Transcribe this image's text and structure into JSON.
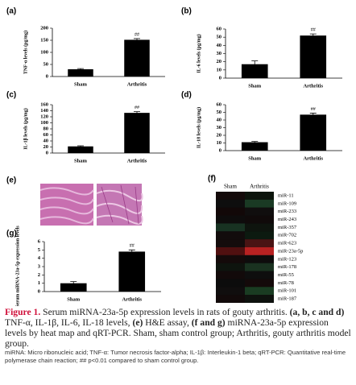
{
  "chart_data": [
    {
      "type": "bar",
      "panel": "(a)",
      "y_label": "TNF-α levels (pg/mg)",
      "categories": [
        "Sham",
        "Arthritis"
      ],
      "values": [
        30,
        152
      ],
      "errors": [
        3,
        5
      ],
      "value_annotations": [
        null,
        "##"
      ],
      "color": "#000000",
      "ylim": [
        0,
        200
      ],
      "yticks": [
        0,
        50,
        100,
        150,
        200
      ]
    },
    {
      "type": "bar",
      "panel": "(b)",
      "y_label": "IL-6 levels (pg/mg)",
      "categories": [
        "Sham",
        "Arthritis"
      ],
      "values": [
        17,
        52
      ],
      "errors": [
        4,
        2
      ],
      "value_annotations": [
        null,
        "##"
      ],
      "color": "#000000",
      "ylim": [
        0,
        60
      ],
      "yticks": [
        0,
        10,
        20,
        30,
        40,
        50,
        60
      ]
    },
    {
      "type": "bar",
      "panel": "(c)",
      "y_label": "IL-1β levels (pg/mg)",
      "categories": [
        "Sham",
        "Arthritis"
      ],
      "values": [
        22,
        133
      ],
      "errors": [
        2,
        4
      ],
      "value_annotations": [
        null,
        "##"
      ],
      "color": "#000000",
      "ylim": [
        0,
        160
      ],
      "yticks": [
        0,
        20,
        40,
        60,
        80,
        100,
        120,
        140,
        160
      ]
    },
    {
      "type": "bar",
      "panel": "(d)",
      "y_label": "IL-18 levels (pg/mg)",
      "categories": [
        "Sham",
        "Arthritis"
      ],
      "values": [
        11,
        47
      ],
      "errors": [
        1,
        2
      ],
      "value_annotations": [
        null,
        "##"
      ],
      "color": "#000000",
      "ylim": [
        0,
        60
      ],
      "yticks": [
        0,
        10,
        20,
        30,
        40,
        50,
        60
      ]
    },
    {
      "type": "bar",
      "panel": "(g)",
      "y_label": "Serum miRNA-23a-5p expression levels",
      "categories": [
        "Sham",
        "Arthritis"
      ],
      "values": [
        1,
        4.8
      ],
      "errors": [
        0.2,
        0.2
      ],
      "value_annotations": [
        null,
        "##"
      ],
      "color": "#000000",
      "ylim": [
        0,
        6
      ],
      "yticks": [
        0,
        1,
        2,
        3,
        4,
        5,
        6
      ]
    },
    {
      "type": "heatmap",
      "panel": "(f)",
      "columns": [
        "Sham",
        "Arthritis"
      ],
      "rows": [
        "miR-11",
        "miR-109",
        "miR-233",
        "miR-243",
        "miR-357",
        "miR-702",
        "miR-623",
        "miR-23a-5p",
        "miR-123",
        "miR-178",
        "miR-55",
        "miR-78",
        "miR-101",
        "miR-187"
      ],
      "cell_colors": [
        [
          "#140a0a",
          "#0c140c"
        ],
        [
          "#0e0e0e",
          "#1a3a24"
        ],
        [
          "#120808",
          "#100e0e"
        ],
        [
          "#0e0c0c",
          "#100a0a"
        ],
        [
          "#183222",
          "#0e140e"
        ],
        [
          "#120c0c",
          "#0c1a10"
        ],
        [
          "#140c0c",
          "#4a1414"
        ],
        [
          "#501010",
          "#b82222"
        ],
        [
          "#140a0a",
          "#0e0c0c"
        ],
        [
          "#0e140e",
          "#1a3220"
        ],
        [
          "#120a0a",
          "#0e0e0e"
        ],
        [
          "#0c0c0c",
          "#140a0a"
        ],
        [
          "#100e0e",
          "#1a3c22"
        ],
        [
          "#120a0a",
          "#0e120e"
        ]
      ]
    }
  ],
  "image_panel": {
    "label": "(e)"
  },
  "caption": {
    "label": "Figure 1.",
    "segments": [
      {
        "text": " Serum miRNA-23a-5p expression levels in rats of gouty arthritis. ",
        "bold": false
      },
      {
        "text": "(a, b, c and d)",
        "bold": true
      },
      {
        "text": " TNF-α, IL-1β, IL-6, IL-18 levels, ",
        "bold": false
      },
      {
        "text": "(e)",
        "bold": true
      },
      {
        "text": " H&E assay, ",
        "bold": false
      },
      {
        "text": "(f and g)",
        "bold": true
      },
      {
        "text": " miRNA-23a-5p expression levels by heat map and qRT-PCR. Sham, sham control group; Arthritis, gouty arthritis model group.",
        "bold": false
      }
    ]
  },
  "footnote": "miRNA: Micro ribonucleic acid; TNF-α: Tumor necrosis factor-alpha; IL-1β: Interleukin-1 beta; qRT-PCR: Quantitative real-time polymerase chain reaction; ## p<0.01 compared to sham control group."
}
